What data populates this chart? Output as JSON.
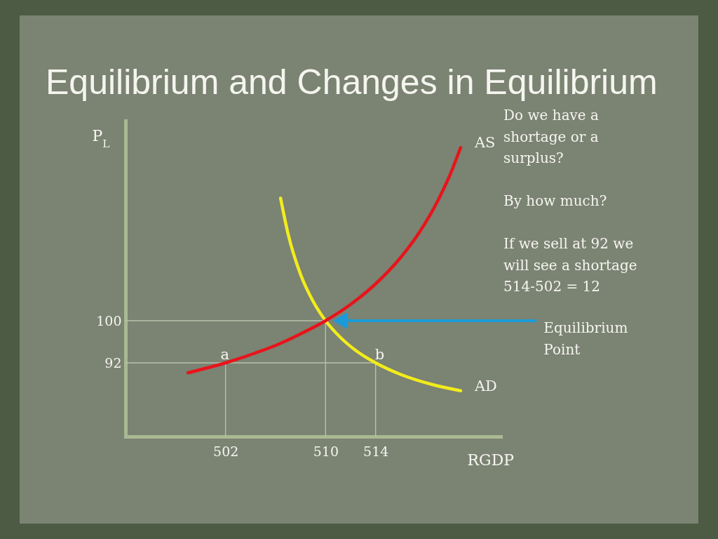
{
  "chart_data": {
    "type": "line",
    "title": "Equilibrium and Changes in Equilibrium",
    "xlabel": "RGDP",
    "ylabel": "P$_{L}$",
    "xlim": [
      494,
      524
    ],
    "xticks": [
      502,
      510,
      514
    ],
    "ylim": [
      78,
      138
    ],
    "yticks": [
      92,
      100
    ],
    "grid": false,
    "series": [
      {
        "color": "#b8c2aa",
        "x": [
          494,
          510,
          510
        ],
        "values": [
          100,
          100,
          78
        ]
      },
      {
        "color": "#b8c2aa",
        "x": [
          494,
          514,
          514
        ],
        "values": [
          92,
          92,
          78
        ]
      },
      {
        "color": "#b8c2aa",
        "x": [
          502,
          502
        ],
        "values": [
          92,
          78
        ]
      },
      {
        "name": "AD",
        "color": "#f2ec1c",
        "x": [
          506.4,
          507.0,
          508.0,
          509.0,
          510,
          511.2,
          512.5,
          514,
          516,
          518.5,
          520.8
        ],
        "values": [
          123.3,
          116.5,
          108.8,
          103.7,
          100,
          96.8,
          94.2,
          92,
          89.8,
          87.9,
          86.7
        ]
      },
      {
        "name": "AS",
        "color": "#e8141b",
        "x": [
          499.0,
          502,
          504.3,
          506.1,
          508.0,
          510,
          512.0,
          514.0,
          516.0,
          517.5,
          519.0,
          520.0,
          520.8
        ],
        "values": [
          90.1,
          92,
          93.8,
          95.4,
          97.5,
          100,
          103.1,
          107.0,
          112.0,
          116.8,
          122.9,
          128.0,
          132.9
        ]
      }
    ],
    "annotations": [
      "Do we have a\nshortage or a\nsurplus?",
      "By how much?",
      "If we sell at 92 we\nwill see a shortage\n514-502 = 12",
      {
        "text": "a",
        "x": 502,
        "y": 92
      },
      {
        "text": "b",
        "x": 514,
        "y": 92
      },
      "Equilibrium\nPoint"
    ]
  }
}
